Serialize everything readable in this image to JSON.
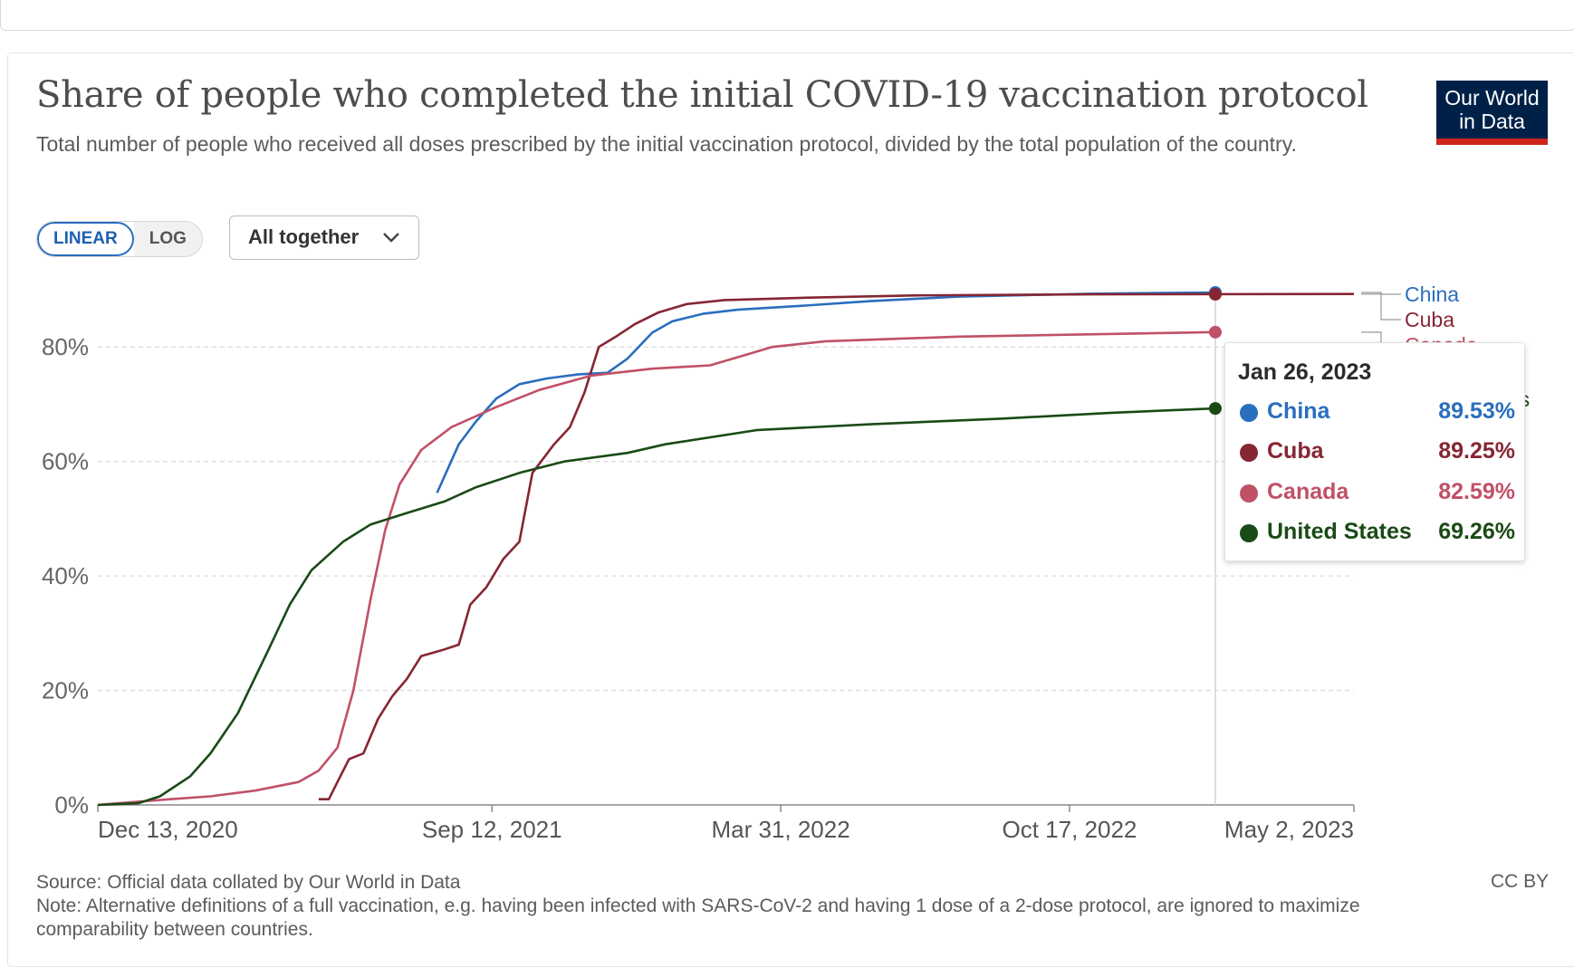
{
  "header": {
    "title": "Share of people who completed the initial COVID-19 vaccination protocol",
    "subtitle": "Total number of people who received all doses prescribed by the initial vaccination protocol, divided by the total population of the country.",
    "logo_line1": "Our World",
    "logo_line2": "in Data"
  },
  "controls": {
    "linear_label": "LINEAR",
    "log_label": "LOG",
    "dropdown_label": "All together"
  },
  "tooltip": {
    "date": "Jan 26, 2023",
    "rows": [
      {
        "name": "China",
        "value": "89.53%",
        "color": "#2a6ebe"
      },
      {
        "name": "Cuba",
        "value": "89.25%",
        "color": "#862633"
      },
      {
        "name": "Canada",
        "value": "82.59%",
        "color": "#c05167"
      },
      {
        "name": "United States",
        "value": "69.26%",
        "color": "#1a4a16"
      }
    ]
  },
  "footer": {
    "source": "Source: Official data collated by Our World in Data",
    "note": "Note: Alternative definitions of a full vaccination, e.g. having been infected with SARS-CoV-2 and having 1 dose of a 2-dose protocol, are ignored to maximize comparability between countries.",
    "license": "CC BY"
  },
  "chart_data": {
    "type": "line",
    "title": "Share of people who completed the initial COVID-19 vaccination protocol",
    "x_type": "date",
    "xlim": [
      "2020-12-13",
      "2023-05-02"
    ],
    "ylim": [
      0,
      90
    ],
    "y_ticks": [
      0,
      20,
      40,
      60,
      80
    ],
    "y_tick_labels": [
      "0%",
      "20%",
      "40%",
      "60%",
      "80%"
    ],
    "x_ticks": [
      "2020-12-13",
      "2021-09-12",
      "2022-03-31",
      "2022-10-17",
      "2023-05-02"
    ],
    "x_tick_labels": [
      "Dec 13, 2020",
      "Sep 12, 2021",
      "Mar 31, 2022",
      "Oct 17, 2022",
      "May 2, 2023"
    ],
    "grid": true,
    "legend": "right-end labels",
    "hover_date": "2023-01-26",
    "series": [
      {
        "name": "China",
        "color": "#2a6ebe",
        "points": [
          [
            "2021-08-05",
            54.5
          ],
          [
            "2021-08-20",
            63
          ],
          [
            "2021-09-01",
            67
          ],
          [
            "2021-09-15",
            71
          ],
          [
            "2021-10-01",
            73.5
          ],
          [
            "2021-10-20",
            74.5
          ],
          [
            "2021-11-10",
            75.2
          ],
          [
            "2021-12-01",
            75.5
          ],
          [
            "2021-12-15",
            78
          ],
          [
            "2022-01-01",
            82.5
          ],
          [
            "2022-01-15",
            84.5
          ],
          [
            "2022-02-05",
            85.8
          ],
          [
            "2022-03-01",
            86.5
          ],
          [
            "2022-04-15",
            87.2
          ],
          [
            "2022-06-01",
            88
          ],
          [
            "2022-08-01",
            88.8
          ],
          [
            "2022-11-01",
            89.3
          ],
          [
            "2023-01-26",
            89.53
          ]
        ]
      },
      {
        "name": "Cuba",
        "color": "#862633",
        "points": [
          [
            "2021-05-15",
            1
          ],
          [
            "2021-05-22",
            1
          ],
          [
            "2021-05-28",
            4
          ],
          [
            "2021-06-05",
            8
          ],
          [
            "2021-06-15",
            9
          ],
          [
            "2021-06-25",
            15
          ],
          [
            "2021-07-05",
            19
          ],
          [
            "2021-07-15",
            22
          ],
          [
            "2021-07-25",
            26
          ],
          [
            "2021-08-08",
            27
          ],
          [
            "2021-08-20",
            28
          ],
          [
            "2021-08-28",
            35
          ],
          [
            "2021-09-08",
            38
          ],
          [
            "2021-09-20",
            43
          ],
          [
            "2021-10-01",
            46
          ],
          [
            "2021-10-10",
            58
          ],
          [
            "2021-10-25",
            63
          ],
          [
            "2021-11-05",
            66
          ],
          [
            "2021-11-15",
            72
          ],
          [
            "2021-11-25",
            80
          ],
          [
            "2021-12-08",
            82
          ],
          [
            "2021-12-20",
            84
          ],
          [
            "2022-01-05",
            86
          ],
          [
            "2022-01-25",
            87.5
          ],
          [
            "2022-02-20",
            88.2
          ],
          [
            "2022-04-15",
            88.6
          ],
          [
            "2022-07-01",
            89
          ],
          [
            "2022-11-01",
            89.2
          ],
          [
            "2023-05-02",
            89.25
          ]
        ]
      },
      {
        "name": "Canada",
        "color": "#c05167",
        "points": [
          [
            "2020-12-13",
            0
          ],
          [
            "2021-01-01",
            0.4
          ],
          [
            "2021-02-01",
            1
          ],
          [
            "2021-03-01",
            1.5
          ],
          [
            "2021-04-01",
            2.5
          ],
          [
            "2021-05-01",
            4
          ],
          [
            "2021-05-15",
            6
          ],
          [
            "2021-05-28",
            10
          ],
          [
            "2021-06-08",
            20
          ],
          [
            "2021-06-20",
            36
          ],
          [
            "2021-06-30",
            48
          ],
          [
            "2021-07-10",
            56
          ],
          [
            "2021-07-25",
            62
          ],
          [
            "2021-08-15",
            66
          ],
          [
            "2021-09-15",
            69.5
          ],
          [
            "2021-10-15",
            72.5
          ],
          [
            "2021-11-20",
            75
          ],
          [
            "2022-01-01",
            76.2
          ],
          [
            "2022-02-10",
            76.8
          ],
          [
            "2022-03-05",
            78.5
          ],
          [
            "2022-03-25",
            80
          ],
          [
            "2022-05-01",
            81
          ],
          [
            "2022-08-01",
            81.8
          ],
          [
            "2023-01-26",
            82.59
          ]
        ]
      },
      {
        "name": "United States",
        "color": "#1a4a16",
        "points": [
          [
            "2020-12-13",
            0
          ],
          [
            "2021-01-10",
            0.3
          ],
          [
            "2021-01-25",
            1.5
          ],
          [
            "2021-02-15",
            5
          ],
          [
            "2021-03-01",
            9
          ],
          [
            "2021-03-20",
            16
          ],
          [
            "2021-04-10",
            27
          ],
          [
            "2021-04-25",
            35
          ],
          [
            "2021-05-10",
            41
          ],
          [
            "2021-06-01",
            46
          ],
          [
            "2021-06-20",
            49
          ],
          [
            "2021-07-15",
            51
          ],
          [
            "2021-08-10",
            53
          ],
          [
            "2021-09-01",
            55.5
          ],
          [
            "2021-10-01",
            58
          ],
          [
            "2021-11-01",
            60
          ],
          [
            "2021-12-15",
            61.5
          ],
          [
            "2022-01-10",
            63
          ],
          [
            "2022-03-15",
            65.5
          ],
          [
            "2022-06-01",
            66.5
          ],
          [
            "2022-09-01",
            67.5
          ],
          [
            "2022-11-15",
            68.5
          ],
          [
            "2023-01-26",
            69.26
          ]
        ]
      }
    ]
  }
}
